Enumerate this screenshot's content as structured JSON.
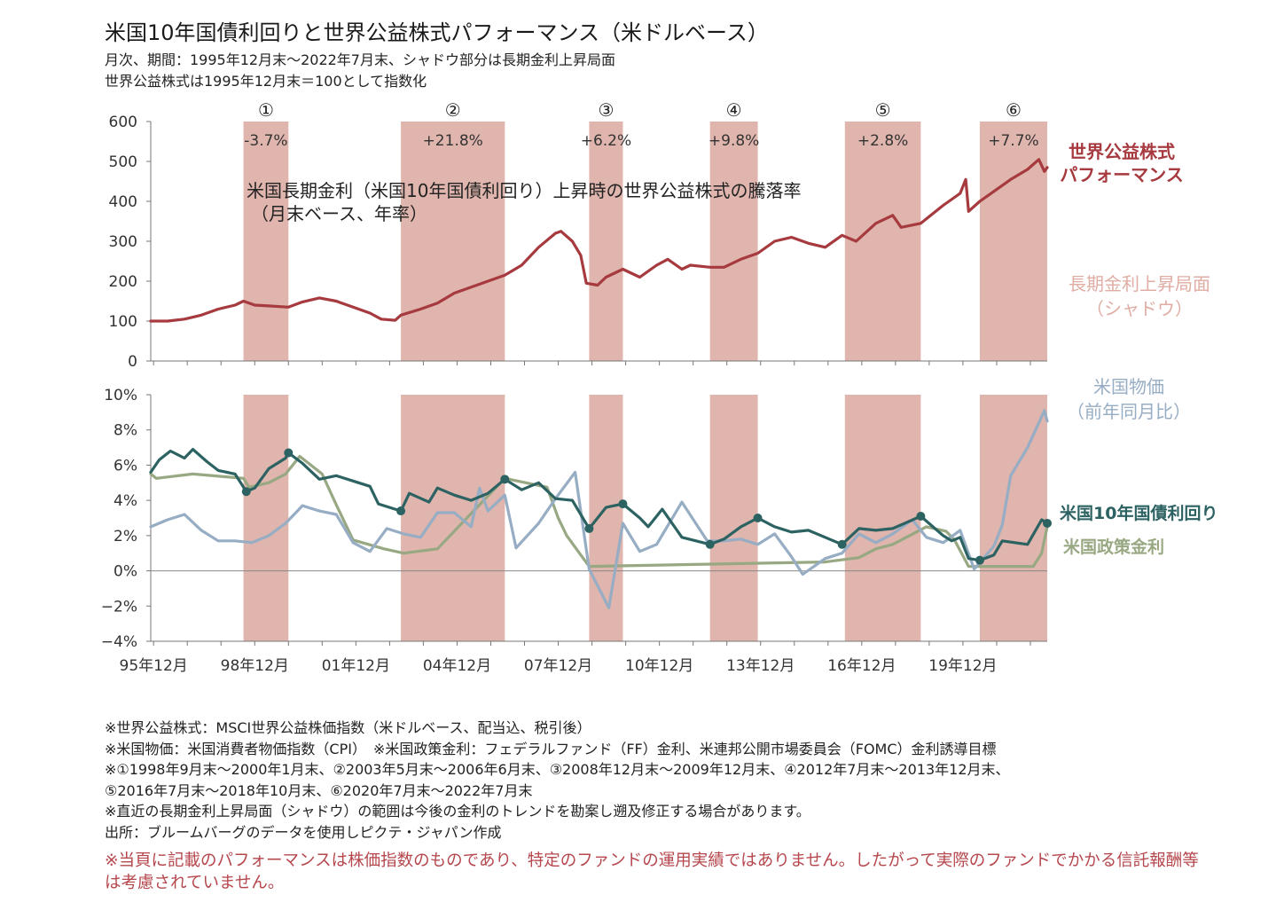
{
  "title": "米国10年国債利回りと世界公益株式パフォーマンス（米ドルベース）",
  "subtitle_1": "月次、期間：1995年12月末～2022年7月末、シャドウ部分は長期金利上昇局面",
  "subtitle_2": "世界公益株式は1995年12月末＝100として指数化",
  "colors": {
    "equity": "#a63a3f",
    "shading": "#dfb5ad",
    "shading_label": "#e0ada4",
    "cpi": "#97adc4",
    "yield10y": "#2d6262",
    "policy": "#98a883",
    "disclaimer": "#b5474d"
  },
  "chart_data": [
    {
      "type": "line",
      "title": "米国長期金利（米国10年国債利回り）上昇時の世界公益株式の騰落率",
      "subtitle": "（月末ベース、年率）",
      "ylim": [
        0,
        600
      ],
      "yticks": [
        "600",
        "500",
        "400",
        "300",
        "200",
        "100",
        "0"
      ],
      "x_start": "1995-12",
      "x_end": "2022-07",
      "shaded_periods": [
        {
          "label": "①",
          "start": "1998-09",
          "end": "2000-01",
          "return": "-3.7%"
        },
        {
          "label": "②",
          "start": "2003-05",
          "end": "2006-06",
          "return": "+21.8%"
        },
        {
          "label": "③",
          "start": "2008-12",
          "end": "2009-12",
          "return": "+6.2%"
        },
        {
          "label": "④",
          "start": "2012-07",
          "end": "2013-12",
          "return": "+9.8%"
        },
        {
          "label": "⑤",
          "start": "2016-07",
          "end": "2018-10",
          "return": "+2.8%"
        },
        {
          "label": "⑥",
          "start": "2020-07",
          "end": "2022-07",
          "return": "+7.7%"
        }
      ],
      "series": [
        {
          "name": "世界公益株式パフォーマンス",
          "points": [
            [
              "1995-12",
              100
            ],
            [
              "1996-06",
              100
            ],
            [
              "1996-12",
              105
            ],
            [
              "1997-06",
              115
            ],
            [
              "1997-12",
              130
            ],
            [
              "1998-06",
              140
            ],
            [
              "1998-09",
              150
            ],
            [
              "1999-01",
              140
            ],
            [
              "1999-06",
              138
            ],
            [
              "2000-01",
              135
            ],
            [
              "2000-06",
              148
            ],
            [
              "2000-12",
              158
            ],
            [
              "2001-06",
              150
            ],
            [
              "2001-12",
              135
            ],
            [
              "2002-06",
              120
            ],
            [
              "2002-10",
              105
            ],
            [
              "2003-03",
              102
            ],
            [
              "2003-05",
              115
            ],
            [
              "2003-12",
              130
            ],
            [
              "2004-06",
              145
            ],
            [
              "2004-12",
              170
            ],
            [
              "2005-06",
              185
            ],
            [
              "2005-12",
              200
            ],
            [
              "2006-06",
              215
            ],
            [
              "2006-12",
              240
            ],
            [
              "2007-06",
              285
            ],
            [
              "2007-12",
              320
            ],
            [
              "2008-02",
              325
            ],
            [
              "2008-06",
              300
            ],
            [
              "2008-09",
              265
            ],
            [
              "2008-11",
              195
            ],
            [
              "2009-03",
              190
            ],
            [
              "2009-06",
              210
            ],
            [
              "2009-12",
              230
            ],
            [
              "2010-06",
              210
            ],
            [
              "2010-12",
              240
            ],
            [
              "2011-04",
              255
            ],
            [
              "2011-09",
              230
            ],
            [
              "2011-12",
              240
            ],
            [
              "2012-07",
              235
            ],
            [
              "2012-12",
              235
            ],
            [
              "2013-06",
              255
            ],
            [
              "2013-12",
              270
            ],
            [
              "2014-06",
              300
            ],
            [
              "2014-12",
              310
            ],
            [
              "2015-06",
              295
            ],
            [
              "2015-12",
              285
            ],
            [
              "2016-06",
              315
            ],
            [
              "2016-11",
              300
            ],
            [
              "2017-06",
              345
            ],
            [
              "2017-12",
              365
            ],
            [
              "2018-03",
              335
            ],
            [
              "2018-10",
              345
            ],
            [
              "2019-06",
              390
            ],
            [
              "2019-12",
              420
            ],
            [
              "2020-02",
              455
            ],
            [
              "2020-03",
              375
            ],
            [
              "2020-07",
              400
            ],
            [
              "2020-12",
              425
            ],
            [
              "2021-06",
              455
            ],
            [
              "2021-12",
              480
            ],
            [
              "2022-04",
              505
            ],
            [
              "2022-06",
              475
            ],
            [
              "2022-07",
              485
            ]
          ]
        }
      ],
      "labels": {
        "equity": [
          "世界公益株式",
          "パフォーマンス"
        ],
        "shading": [
          "長期金利上昇局面",
          "（シャドウ）"
        ]
      }
    },
    {
      "type": "line",
      "ylim": [
        -4,
        10
      ],
      "yticks": [
        "10%",
        "8%",
        "6%",
        "4%",
        "2%",
        "0%",
        "−2%",
        "−4%"
      ],
      "x_tick_labels": [
        "95年12月",
        "98年12月",
        "01年12月",
        "04年12月",
        "07年12月",
        "10年12月",
        "13年12月",
        "16年12月",
        "19年12月"
      ],
      "series": [
        {
          "name": "米国10年国債利回り",
          "points": [
            [
              "1995-12",
              5.6
            ],
            [
              "1996-03",
              6.3
            ],
            [
              "1996-07",
              6.8
            ],
            [
              "1996-12",
              6.4
            ],
            [
              "1997-03",
              6.9
            ],
            [
              "1997-08",
              6.2
            ],
            [
              "1997-12",
              5.7
            ],
            [
              "1998-06",
              5.5
            ],
            [
              "1998-10",
              4.5
            ],
            [
              "1999-01",
              4.7
            ],
            [
              "1999-06",
              5.8
            ],
            [
              "1999-12",
              6.4
            ],
            [
              "2000-01",
              6.7
            ],
            [
              "2000-06",
              6.1
            ],
            [
              "2000-12",
              5.2
            ],
            [
              "2001-06",
              5.4
            ],
            [
              "2001-12",
              5.1
            ],
            [
              "2002-06",
              4.8
            ],
            [
              "2002-09",
              3.8
            ],
            [
              "2003-05",
              3.4
            ],
            [
              "2003-08",
              4.4
            ],
            [
              "2004-03",
              3.9
            ],
            [
              "2004-06",
              4.7
            ],
            [
              "2004-12",
              4.3
            ],
            [
              "2005-06",
              4.0
            ],
            [
              "2005-12",
              4.4
            ],
            [
              "2006-06",
              5.2
            ],
            [
              "2006-12",
              4.6
            ],
            [
              "2007-06",
              5.0
            ],
            [
              "2007-12",
              4.1
            ],
            [
              "2008-06",
              4.0
            ],
            [
              "2008-12",
              2.4
            ],
            [
              "2009-06",
              3.6
            ],
            [
              "2009-12",
              3.8
            ],
            [
              "2010-06",
              3.0
            ],
            [
              "2010-09",
              2.5
            ],
            [
              "2011-02",
              3.5
            ],
            [
              "2011-09",
              1.9
            ],
            [
              "2012-07",
              1.5
            ],
            [
              "2012-12",
              1.8
            ],
            [
              "2013-06",
              2.5
            ],
            [
              "2013-12",
              3.0
            ],
            [
              "2014-06",
              2.5
            ],
            [
              "2014-12",
              2.2
            ],
            [
              "2015-06",
              2.3
            ],
            [
              "2016-06",
              1.5
            ],
            [
              "2016-12",
              2.4
            ],
            [
              "2017-06",
              2.3
            ],
            [
              "2017-12",
              2.4
            ],
            [
              "2018-10",
              3.1
            ],
            [
              "2019-06",
              2.0
            ],
            [
              "2019-09",
              1.7
            ],
            [
              "2019-12",
              1.9
            ],
            [
              "2020-03",
              0.7
            ],
            [
              "2020-07",
              0.6
            ],
            [
              "2020-12",
              0.9
            ],
            [
              "2021-03",
              1.7
            ],
            [
              "2021-12",
              1.5
            ],
            [
              "2022-05",
              2.9
            ],
            [
              "2022-07",
              2.7
            ]
          ]
        },
        {
          "name": "米国政策金利",
          "points": [
            [
              "1995-12",
              5.5
            ],
            [
              "1996-02",
              5.25
            ],
            [
              "1997-03",
              5.5
            ],
            [
              "1998-09",
              5.25
            ],
            [
              "1998-11",
              4.75
            ],
            [
              "1999-06",
              5.0
            ],
            [
              "1999-12",
              5.5
            ],
            [
              "2000-05",
              6.5
            ],
            [
              "2001-01",
              5.5
            ],
            [
              "2001-06",
              3.75
            ],
            [
              "2001-12",
              1.75
            ],
            [
              "2002-11",
              1.25
            ],
            [
              "2003-06",
              1.0
            ],
            [
              "2004-06",
              1.25
            ],
            [
              "2005-06",
              3.25
            ],
            [
              "2006-06",
              5.25
            ],
            [
              "2007-09",
              4.75
            ],
            [
              "2008-01",
              3.0
            ],
            [
              "2008-04",
              2.0
            ],
            [
              "2008-12",
              0.25
            ],
            [
              "2015-12",
              0.5
            ],
            [
              "2016-12",
              0.75
            ],
            [
              "2017-06",
              1.25
            ],
            [
              "2017-12",
              1.5
            ],
            [
              "2018-06",
              2.0
            ],
            [
              "2018-12",
              2.5
            ],
            [
              "2019-07",
              2.25
            ],
            [
              "2019-10",
              1.75
            ],
            [
              "2020-03",
              0.25
            ],
            [
              "2022-02",
              0.25
            ],
            [
              "2022-03",
              0.5
            ],
            [
              "2022-05",
              1.0
            ],
            [
              "2022-06",
              1.75
            ],
            [
              "2022-07",
              2.5
            ]
          ]
        },
        {
          "name": "米国物価（前年同月比）",
          "points": [
            [
              "1995-12",
              2.5
            ],
            [
              "1996-06",
              2.9
            ],
            [
              "1996-12",
              3.2
            ],
            [
              "1997-06",
              2.3
            ],
            [
              "1997-12",
              1.7
            ],
            [
              "1998-06",
              1.7
            ],
            [
              "1998-12",
              1.6
            ],
            [
              "1999-06",
              2.0
            ],
            [
              "1999-12",
              2.7
            ],
            [
              "2000-06",
              3.7
            ],
            [
              "2000-12",
              3.4
            ],
            [
              "2001-06",
              3.2
            ],
            [
              "2001-12",
              1.6
            ],
            [
              "2002-06",
              1.1
            ],
            [
              "2002-12",
              2.4
            ],
            [
              "2003-06",
              2.1
            ],
            [
              "2003-12",
              1.9
            ],
            [
              "2004-06",
              3.3
            ],
            [
              "2004-12",
              3.3
            ],
            [
              "2005-06",
              2.5
            ],
            [
              "2005-09",
              4.7
            ],
            [
              "2005-12",
              3.4
            ],
            [
              "2006-06",
              4.3
            ],
            [
              "2006-10",
              1.3
            ],
            [
              "2007-06",
              2.7
            ],
            [
              "2007-12",
              4.1
            ],
            [
              "2008-07",
              5.6
            ],
            [
              "2008-12",
              0.1
            ],
            [
              "2009-07",
              -2.1
            ],
            [
              "2009-12",
              2.7
            ],
            [
              "2010-06",
              1.1
            ],
            [
              "2010-12",
              1.5
            ],
            [
              "2011-09",
              3.9
            ],
            [
              "2012-06",
              1.7
            ],
            [
              "2012-12",
              1.7
            ],
            [
              "2013-06",
              1.8
            ],
            [
              "2013-12",
              1.5
            ],
            [
              "2014-06",
              2.1
            ],
            [
              "2014-12",
              0.8
            ],
            [
              "2015-04",
              -0.2
            ],
            [
              "2015-12",
              0.7
            ],
            [
              "2016-06",
              1.0
            ],
            [
              "2016-12",
              2.1
            ],
            [
              "2017-06",
              1.6
            ],
            [
              "2017-12",
              2.1
            ],
            [
              "2018-07",
              2.9
            ],
            [
              "2018-12",
              1.9
            ],
            [
              "2019-06",
              1.6
            ],
            [
              "2019-12",
              2.3
            ],
            [
              "2020-05",
              0.1
            ],
            [
              "2020-12",
              1.4
            ],
            [
              "2021-03",
              2.6
            ],
            [
              "2021-06",
              5.4
            ],
            [
              "2021-12",
              7.0
            ],
            [
              "2022-06",
              9.1
            ],
            [
              "2022-07",
              8.5
            ]
          ]
        }
      ],
      "labels": {
        "cpi": [
          "米国物価",
          "（前年同月比）"
        ],
        "yield10y": "米国10年国債利回り",
        "policy": "米国政策金利"
      }
    }
  ],
  "notes": [
    "※世界公益株式：MSCI世界公益株価指数（米ドルベース、配当込、税引後）",
    "※米国物価：米国消費者物価指数（CPI）　※米国政策金利：フェデラルファンド（FF）金利、米連邦公開市場委員会（FOMC）金利誘導目標",
    "※①1998年9月末～2000年1月末、②2003年5月末～2006年6月末、③2008年12月末～2009年12月末、④2012年7月末～2013年12月末、",
    "⑤2016年7月末～2018年10月末、⑥2020年7月末～2022年7月末",
    "※直近の長期金利上昇局面（シャドウ）の範囲は今後の金利のトレンドを勘案し遡及修正する場合があります。",
    "出所：ブルームバーグのデータを使用しピクテ・ジャパン作成"
  ],
  "disclaimer": "※当頁に記載のパフォーマンスは株価指数のものであり、特定のファンドの運用実績ではありません。したがって実際のファンドでかかる信託報酬等は考慮されていません。"
}
